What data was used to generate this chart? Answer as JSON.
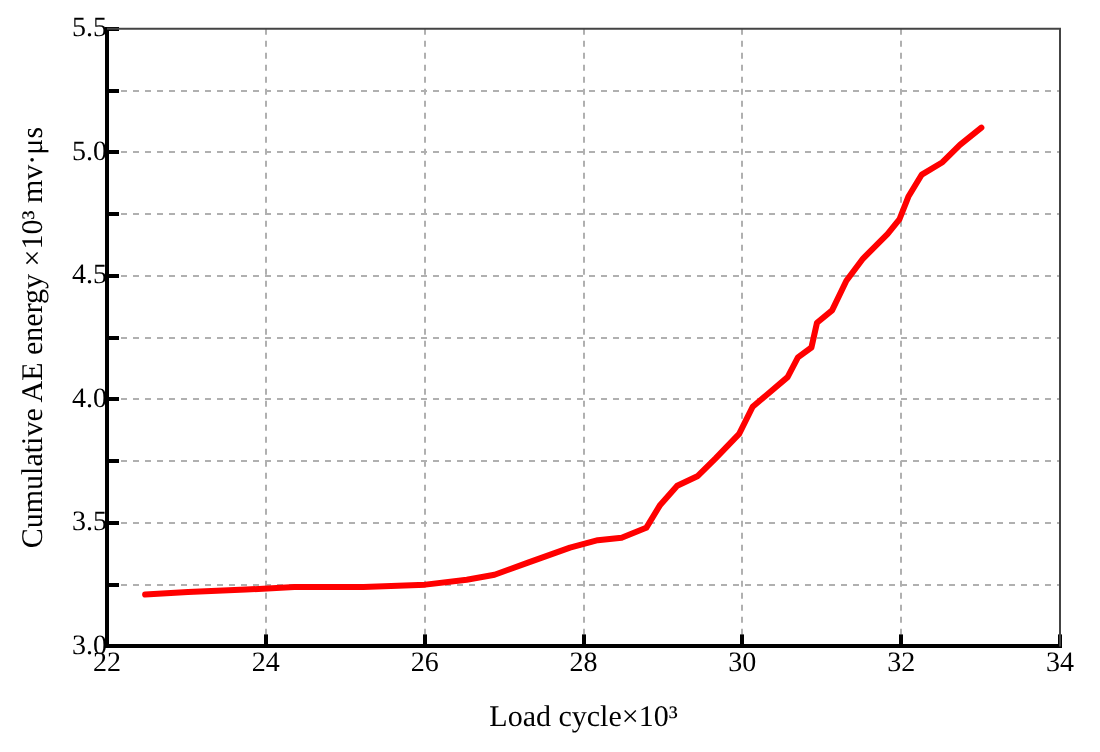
{
  "chart_data": {
    "type": "line",
    "xlabel": "Load cycle×10³",
    "ylabel": "Cumulative AE energy ×10³ mv·μs",
    "x": [
      22.48,
      23.02,
      23.75,
      24.36,
      25.23,
      26.01,
      26.53,
      26.88,
      27.31,
      27.83,
      28.18,
      28.48,
      28.79,
      28.96,
      29.18,
      29.44,
      29.66,
      29.96,
      30.13,
      30.35,
      30.57,
      30.7,
      30.87,
      30.94,
      31.13,
      31.31,
      31.52,
      31.83,
      31.98,
      32.09,
      32.26,
      32.52,
      32.74,
      33.01
    ],
    "series": [
      {
        "color": "#ff0000",
        "values": [
          3.21,
          3.22,
          3.23,
          3.24,
          3.24,
          3.25,
          3.27,
          3.29,
          3.34,
          3.4,
          3.43,
          3.44,
          3.48,
          3.57,
          3.65,
          3.69,
          3.76,
          3.86,
          3.97,
          4.03,
          4.09,
          4.17,
          4.21,
          4.31,
          4.36,
          4.48,
          4.57,
          4.67,
          4.73,
          4.82,
          4.91,
          4.96,
          5.03,
          5.1
        ]
      }
    ],
    "xlim": [
      22,
      34
    ],
    "xticks": [
      22,
      24,
      26,
      28,
      30,
      32,
      34
    ],
    "ylim": [
      3.0,
      5.5
    ],
    "yticks": [
      {
        "value": 3.0,
        "label": "3.0"
      },
      {
        "value": 3.25,
        "label": null
      },
      {
        "value": 3.5,
        "label": "3.5"
      },
      {
        "value": 3.75,
        "label": null
      },
      {
        "value": 4.0,
        "label": "4.0"
      },
      {
        "value": 4.25,
        "label": null
      },
      {
        "value": 4.5,
        "label": "4.5"
      },
      {
        "value": 4.75,
        "label": null
      },
      {
        "value": 5.0,
        "label": "5.0"
      },
      {
        "value": 5.25,
        "label": null
      },
      {
        "value": 5.5,
        "label": "5.5"
      }
    ],
    "grid": true,
    "legend": false,
    "marker": "none",
    "line_style": "solid"
  }
}
